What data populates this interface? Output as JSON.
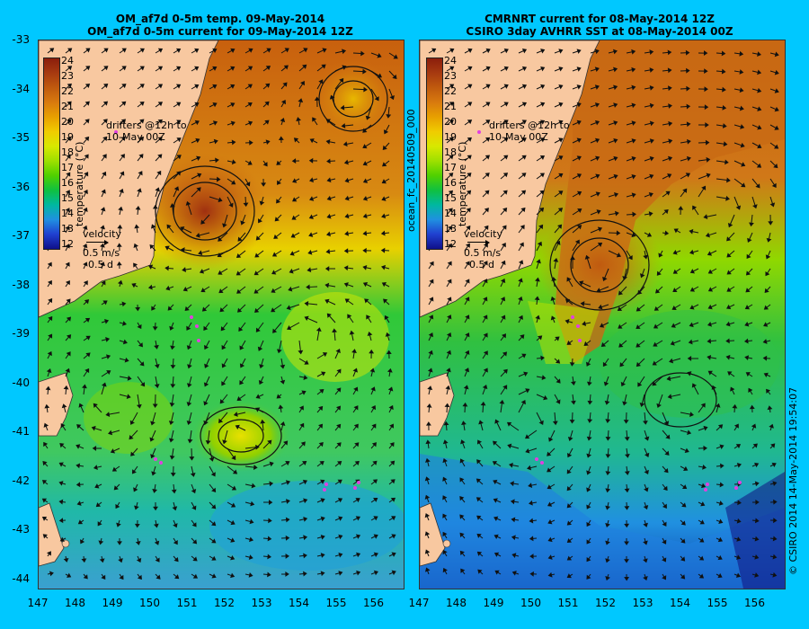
{
  "left_panel": {
    "title_line1": "OM_af7d 0-5m temp. 09-May-2014",
    "title_line2": "OM_af7d 0-5m current for 09-May-2014 12Z"
  },
  "right_panel": {
    "title_line1": "CMRNRT current for 08-May-2014 12Z",
    "title_line2": "CSIRO 3day AVHRR SST at 08-May-2014 00Z"
  },
  "y_axis_labels": [
    "-33",
    "-34",
    "-35",
    "-36",
    "-37",
    "-38",
    "-39",
    "-40",
    "-41",
    "-42",
    "-43",
    "-44"
  ],
  "x_axis_labels": [
    "147",
    "148",
    "149",
    "150",
    "151",
    "152",
    "153",
    "154",
    "155",
    "156"
  ],
  "colorbar": {
    "title": "temperature (°C)",
    "labels": [
      "24",
      "23",
      "22",
      "21",
      "20",
      "19",
      "18",
      "17",
      "16",
      "15",
      "14",
      "13",
      "12"
    ],
    "colors": [
      "#8b1e0c",
      "#a73a10",
      "#c05a0e",
      "#d87a0e",
      "#e8a000",
      "#f0cc00",
      "#d8e800",
      "#9ee000",
      "#50d000",
      "#10c040",
      "#00b8a0",
      "#2090e0",
      "#2040d0",
      "#10108a"
    ]
  },
  "drifters_label_line1": "drifters @12h to",
  "drifters_label_line2": "10-May 00Z",
  "velocity_label": "velocity",
  "velocity_scale": "0.5 m/s",
  "velocity_duration": "0.5 d",
  "run_id": "ocean_fc_20140509_000",
  "credit": "© CSIRO 2014   14-May-2014 19:54:07",
  "colors": {
    "background": "#00c8ff",
    "land": "#f8c8a0",
    "drifter": "#e040e0"
  }
}
